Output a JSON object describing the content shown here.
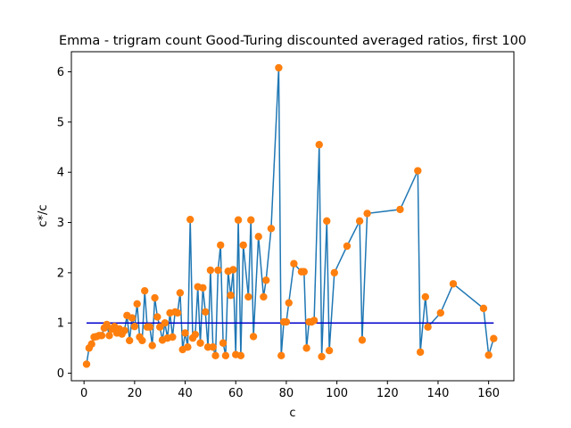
{
  "chart_data": {
    "type": "line",
    "title": "Emma - trigram count Good-Turing discounted averaged ratios, first 100",
    "xlabel": "c",
    "ylabel": "c*/c",
    "xlim": [
      -5,
      170
    ],
    "ylim": [
      -0.15,
      6.4
    ],
    "xticks": [
      0,
      20,
      40,
      60,
      80,
      100,
      120,
      140,
      160
    ],
    "yticks": [
      0,
      1,
      2,
      3,
      4,
      5,
      6
    ],
    "grid": false,
    "legend": "none",
    "colors": {
      "series": "#1f77b4",
      "markers": "#ff7f0e",
      "reference": "#0000cc"
    },
    "reference_line": {
      "x": [
        1,
        162
      ],
      "y": 1.0
    },
    "series": [
      {
        "x": [
          1,
          2,
          3,
          4,
          5,
          6,
          7,
          8,
          9,
          10,
          11,
          12,
          13,
          14,
          15,
          16,
          17,
          18,
          19,
          20,
          21,
          22,
          23,
          24,
          25,
          26,
          27,
          28,
          29,
          30,
          31,
          32,
          33,
          34,
          35,
          36,
          37,
          38,
          39,
          40,
          41,
          42,
          43,
          44,
          45,
          46,
          47,
          48,
          49,
          50,
          51,
          52,
          53,
          54,
          55,
          56,
          57,
          58,
          59,
          60,
          61,
          62,
          63,
          65,
          66,
          67,
          69,
          71,
          72,
          74,
          77,
          78,
          79,
          80,
          81,
          83,
          86,
          87,
          88,
          89,
          90,
          91,
          93,
          94,
          96,
          97,
          99,
          104,
          109,
          110,
          112,
          125,
          132,
          133,
          135,
          136,
          141,
          146,
          158,
          160,
          162
        ],
        "y": [
          0.18,
          0.5,
          0.58,
          0.72,
          0.73,
          0.75,
          0.75,
          0.9,
          0.97,
          0.75,
          0.88,
          0.93,
          0.8,
          0.88,
          0.78,
          0.85,
          1.15,
          0.65,
          1.1,
          0.93,
          1.38,
          0.72,
          0.65,
          1.64,
          0.92,
          0.92,
          0.55,
          1.5,
          1.12,
          0.92,
          0.66,
          1.0,
          0.7,
          1.2,
          0.72,
          1.22,
          1.2,
          1.6,
          0.47,
          0.8,
          0.52,
          3.06,
          0.7,
          0.77,
          1.72,
          0.6,
          1.7,
          1.22,
          0.52,
          2.05,
          0.52,
          0.35,
          2.05,
          2.55,
          0.6,
          0.35,
          2.03,
          1.55,
          2.06,
          0.37,
          3.05,
          0.35,
          2.55,
          1.52,
          3.05,
          0.73,
          2.72,
          1.52,
          1.85,
          2.88,
          6.08,
          0.35,
          1.02,
          1.02,
          1.4,
          2.18,
          2.02,
          2.02,
          0.5,
          1.02,
          1.02,
          1.05,
          4.55,
          0.33,
          3.03,
          0.45,
          2.0,
          2.53,
          3.03,
          0.66,
          3.18,
          3.26,
          4.03,
          0.42,
          1.52,
          0.92,
          1.2,
          1.78,
          1.29,
          0.36,
          0.69
        ]
      }
    ]
  }
}
